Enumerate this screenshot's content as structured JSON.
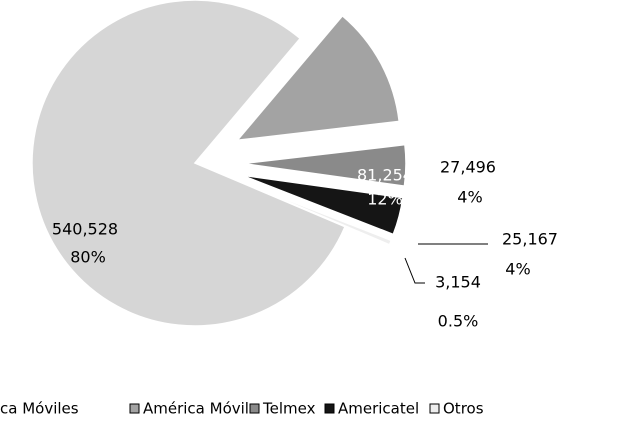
{
  "chart_data": {
    "type": "pie",
    "categories": [
      "ca Móviles",
      "América Móvil",
      "Telmex",
      "Americatel",
      "Otros"
    ],
    "values": [
      540528,
      81254,
      27496,
      25167,
      3154
    ],
    "value_labels": [
      "540,528",
      "81,254",
      "27,496",
      "25,167",
      "3,154"
    ],
    "percentages": [
      80,
      12,
      4,
      4,
      0.5
    ],
    "percentage_labels": [
      "80%",
      "12%",
      "4%",
      "4%",
      "0.5%"
    ],
    "colors": [
      "#d6d6d6",
      "#a3a3a3",
      "#8a8a8a",
      "#151515",
      "#eeeeee"
    ],
    "legend": "bottom"
  }
}
